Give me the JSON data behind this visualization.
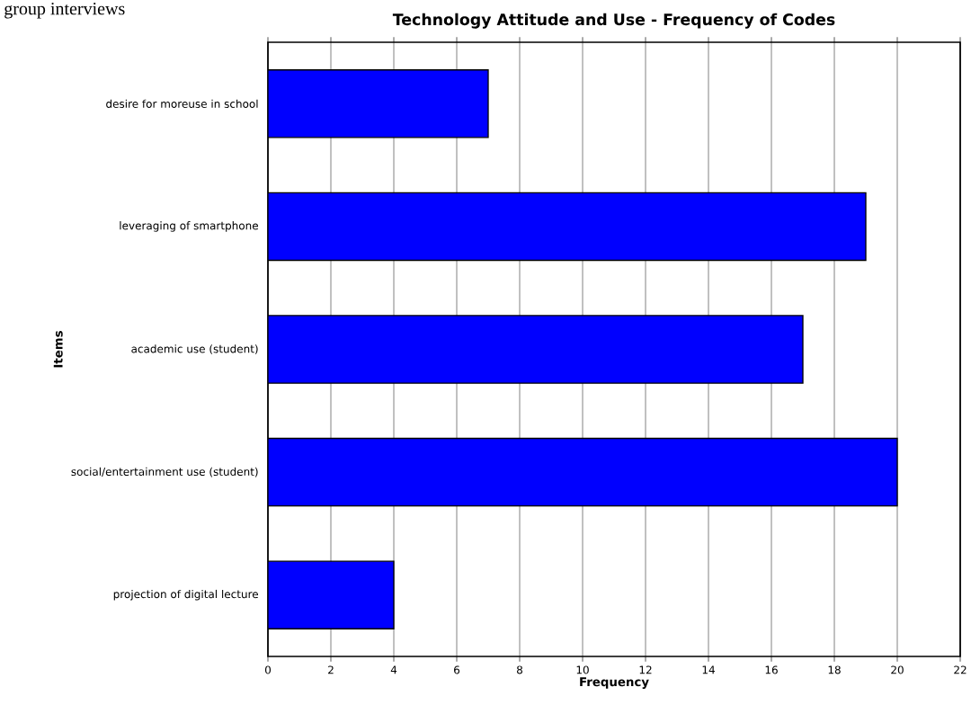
{
  "chart_data": {
    "type": "bar",
    "orientation": "horizontal",
    "title": "Technology Attitude and Use - Frequency of Codes",
    "xlabel": "Frequency",
    "ylabel": "Items",
    "annotations": [
      "group interviews"
    ],
    "categories": [
      "desire for moreuse in school",
      "leveraging of smartphone",
      "academic use (student)",
      "social/entertainment use (student)",
      "projection of digital lecture"
    ],
    "values": [
      7,
      19,
      17,
      20,
      4
    ],
    "color": "#0000ff",
    "xlim": [
      0,
      22
    ],
    "xticks": [
      0,
      2,
      4,
      6,
      8,
      10,
      12,
      14,
      16,
      18,
      20,
      22
    ],
    "grid": "x"
  }
}
